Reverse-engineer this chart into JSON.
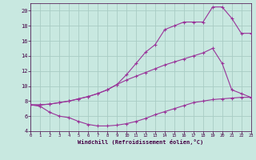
{
  "xlabel": "Windchill (Refroidissement éolien,°C)",
  "background_color": "#c8e8e0",
  "grid_color": "#a8ccc4",
  "line_color": "#993399",
  "xlim": [
    0,
    23
  ],
  "ylim": [
    4,
    21
  ],
  "xticks": [
    0,
    1,
    2,
    3,
    4,
    5,
    6,
    7,
    8,
    9,
    10,
    11,
    12,
    13,
    14,
    15,
    16,
    17,
    18,
    19,
    20,
    21,
    22,
    23
  ],
  "yticks": [
    4,
    6,
    8,
    10,
    12,
    14,
    16,
    18,
    20
  ],
  "series": [
    {
      "x": [
        0,
        1,
        2,
        3,
        4,
        5,
        6,
        7,
        8,
        9,
        10,
        11,
        12,
        13,
        14,
        15,
        16,
        17,
        18,
        19,
        20,
        21,
        22,
        23
      ],
      "y": [
        7.5,
        7.3,
        6.5,
        6.0,
        5.8,
        5.3,
        4.9,
        4.7,
        4.7,
        4.8,
        5.0,
        5.3,
        5.7,
        6.2,
        6.6,
        7.0,
        7.4,
        7.8,
        8.0,
        8.2,
        8.3,
        8.4,
        8.5,
        8.5
      ]
    },
    {
      "x": [
        0,
        1,
        2,
        3,
        4,
        5,
        6,
        7,
        8,
        9,
        10,
        11,
        12,
        13,
        14,
        15,
        16,
        17,
        18,
        19,
        20,
        21,
        22,
        23
      ],
      "y": [
        7.5,
        7.5,
        7.6,
        7.8,
        8.0,
        8.3,
        8.6,
        9.0,
        9.5,
        10.2,
        10.8,
        11.3,
        11.8,
        12.3,
        12.8,
        13.2,
        13.6,
        14.0,
        14.4,
        15.0,
        13.0,
        9.5,
        9.0,
        8.5
      ]
    },
    {
      "x": [
        0,
        1,
        2,
        3,
        4,
        5,
        6,
        7,
        8,
        9,
        10,
        11,
        12,
        13,
        14,
        15,
        16,
        17,
        18,
        19,
        20,
        21,
        22,
        23
      ],
      "y": [
        7.5,
        7.5,
        7.6,
        7.8,
        8.0,
        8.3,
        8.6,
        9.0,
        9.5,
        10.2,
        11.5,
        13.0,
        14.5,
        15.5,
        17.5,
        18.0,
        18.5,
        18.5,
        18.5,
        20.5,
        20.5,
        19.0,
        17.0,
        17.0
      ]
    }
  ]
}
